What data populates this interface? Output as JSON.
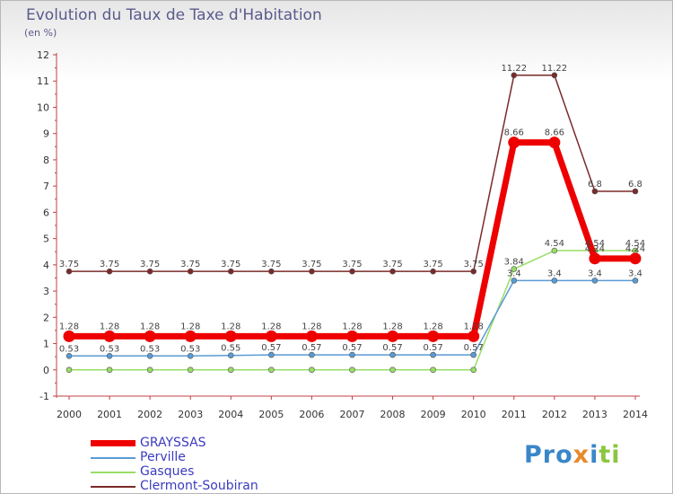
{
  "title": "Evolution du Taux de Taxe d'Habitation",
  "unit_label": "(en %)",
  "logo": {
    "letters": [
      "Pro",
      "x",
      "i",
      "ti"
    ]
  },
  "chart_data": {
    "type": "line",
    "title": "Evolution du Taux de Taxe d'Habitation",
    "ylabel": "(en %)",
    "xlabel": "",
    "ylim": [
      -1,
      12
    ],
    "yticks": [
      -1,
      0,
      1,
      2,
      3,
      4,
      5,
      6,
      7,
      8,
      9,
      10,
      11,
      12
    ],
    "grid": false,
    "legend_position": "bottom-left",
    "categories": [
      "2000",
      "2001",
      "2002",
      "2003",
      "2004",
      "2005",
      "2006",
      "2007",
      "2008",
      "2009",
      "2010",
      "2011",
      "2012",
      "2013",
      "2014"
    ],
    "series": [
      {
        "name": "GRAYSSAS",
        "color": "#ee0000",
        "values": [
          1.28,
          1.28,
          1.28,
          1.28,
          1.28,
          1.28,
          1.28,
          1.28,
          1.28,
          1.28,
          1.28,
          8.66,
          8.66,
          4.24,
          4.24
        ],
        "labels": [
          "1.28",
          "1.28",
          "1.28",
          "1.28",
          "1.28",
          "1.28",
          "1.28",
          "1.28",
          "1.28",
          "1.28",
          "1.28",
          "8.66",
          "8.66",
          "4.24",
          "4.24"
        ]
      },
      {
        "name": "Perville",
        "color": "#5a9bd4",
        "values": [
          0.53,
          0.53,
          0.53,
          0.53,
          0.55,
          0.57,
          0.57,
          0.57,
          0.57,
          0.57,
          0.57,
          3.4,
          3.4,
          3.4,
          3.4
        ],
        "labels": [
          "0.53",
          "0.53",
          "0.53",
          "0.53",
          "0.55",
          "0.57",
          "0.57",
          "0.57",
          "0.57",
          "0.57",
          "0.57",
          "3.4",
          "3.4",
          "3.4",
          "3.4"
        ]
      },
      {
        "name": "Gasques",
        "color": "#99dd66",
        "values": [
          0,
          0,
          0,
          0,
          0,
          0,
          0,
          0,
          0,
          0,
          0,
          3.84,
          4.54,
          4.54,
          4.54
        ],
        "labels": [
          "",
          "",
          "",
          "",
          "",
          "",
          "",
          "",
          "",
          "",
          "",
          "3.84",
          "4.54",
          "4.54",
          "4.54"
        ]
      },
      {
        "name": "Clermont-Soubiran",
        "color": "#7a2a2a",
        "values": [
          3.75,
          3.75,
          3.75,
          3.75,
          3.75,
          3.75,
          3.75,
          3.75,
          3.75,
          3.75,
          3.75,
          11.22,
          11.22,
          6.8,
          6.8
        ],
        "labels": [
          "3.75",
          "3.75",
          "3.75",
          "3.75",
          "3.75",
          "3.75",
          "3.75",
          "3.75",
          "3.75",
          "3.75",
          "3.75",
          "11.22",
          "11.22",
          "6.8",
          "6.8"
        ]
      }
    ]
  }
}
